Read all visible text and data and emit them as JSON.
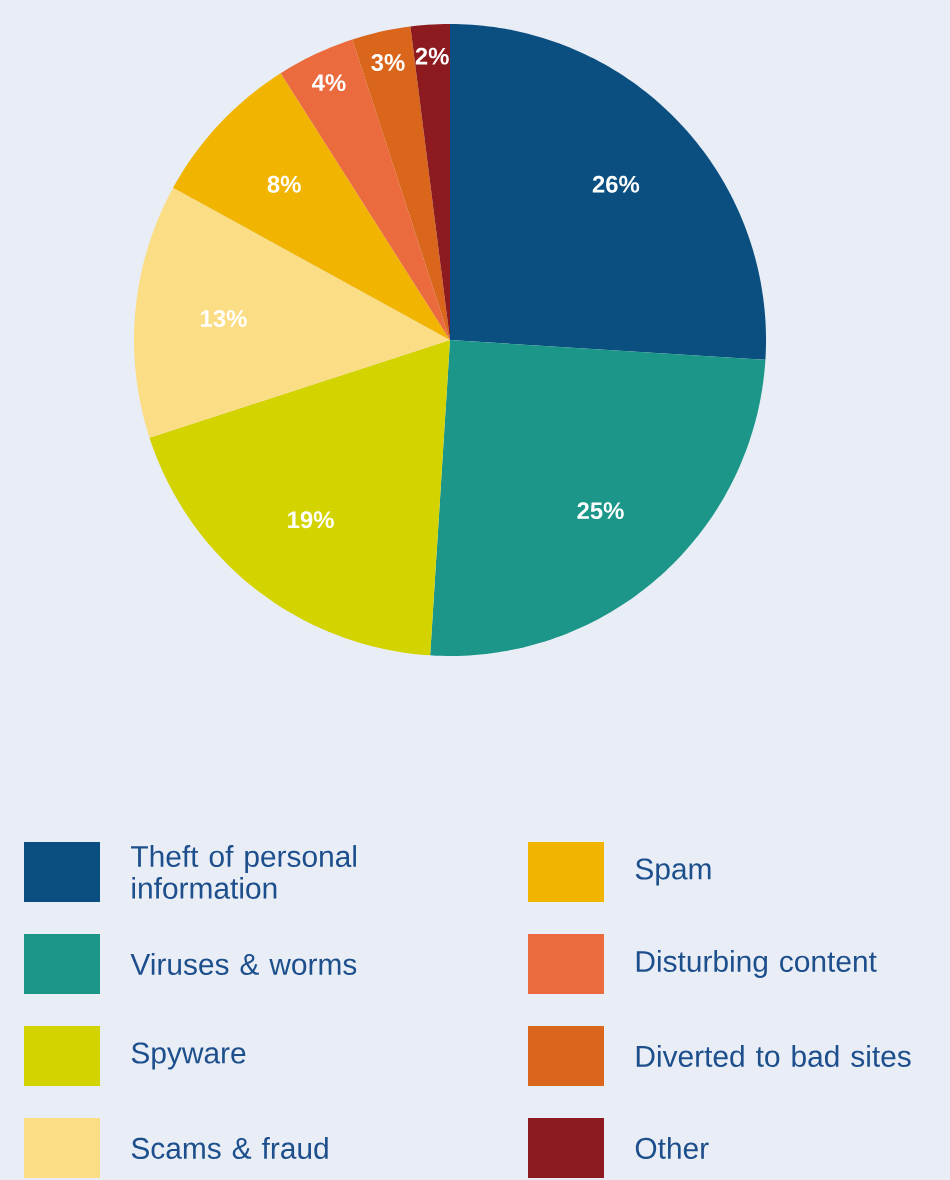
{
  "chart_data": {
    "type": "pie",
    "categories": [
      "Theft of personal information",
      "Viruses & worms",
      "Spyware",
      "Scams & fraud",
      "Spam",
      "Disturbing content",
      "Diverted to bad sites",
      "Other"
    ],
    "values": [
      26,
      25,
      19,
      13,
      8,
      4,
      3,
      2
    ],
    "colors": [
      "#0a4f80",
      "#1b9688",
      "#d3d300",
      "#fbdd85",
      "#f1b400",
      "#eb6b3e",
      "#d9661b",
      "#8c1a1e"
    ],
    "value_labels": [
      "26%",
      "25%",
      "19%",
      "13%",
      "8%",
      "4%",
      "3%",
      "2%"
    ],
    "legend": "bottom"
  }
}
